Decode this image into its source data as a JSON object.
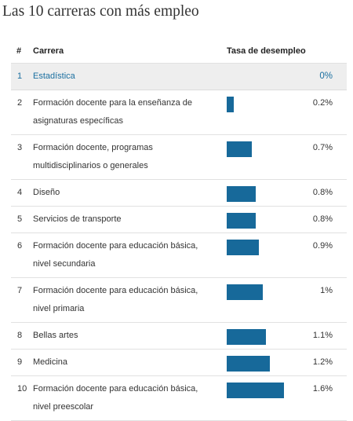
{
  "chart_data": {
    "type": "table",
    "title": "Las 10 carreras con más empleo",
    "columns": [
      "#",
      "Carrera",
      "Tasa de desempleo"
    ],
    "rows": [
      {
        "rank": "1",
        "career": "Estadística",
        "value": 0,
        "label": "0%",
        "highlight": true
      },
      {
        "rank": "2",
        "career": "Formación docente para la enseñanza de asignaturas específicas",
        "value": 0.2,
        "label": "0.2%"
      },
      {
        "rank": "3",
        "career": "Formación docente, programas multidisciplinarios o generales",
        "value": 0.7,
        "label": "0.7%"
      },
      {
        "rank": "4",
        "career": "Diseño",
        "value": 0.8,
        "label": "0.8%"
      },
      {
        "rank": "5",
        "career": "Servicios de transporte",
        "value": 0.8,
        "label": "0.8%"
      },
      {
        "rank": "6",
        "career": "Formación docente para educación básica, nivel secundaria",
        "value": 0.9,
        "label": "0.9%"
      },
      {
        "rank": "7",
        "career": "Formación docente para educación básica, nivel primaria",
        "value": 1.0,
        "label": "1%"
      },
      {
        "rank": "8",
        "career": "Bellas artes",
        "value": 1.1,
        "label": "1.1%"
      },
      {
        "rank": "9",
        "career": "Medicina",
        "value": 1.2,
        "label": "1.2%"
      },
      {
        "rank": "10",
        "career": "Formación docente para educación básica, nivel preescolar",
        "value": 1.6,
        "label": "1.6%"
      }
    ],
    "value_range": [
      0,
      1.6
    ],
    "bar_color": "#17699a",
    "highlight_color": "#1a6fa0"
  }
}
